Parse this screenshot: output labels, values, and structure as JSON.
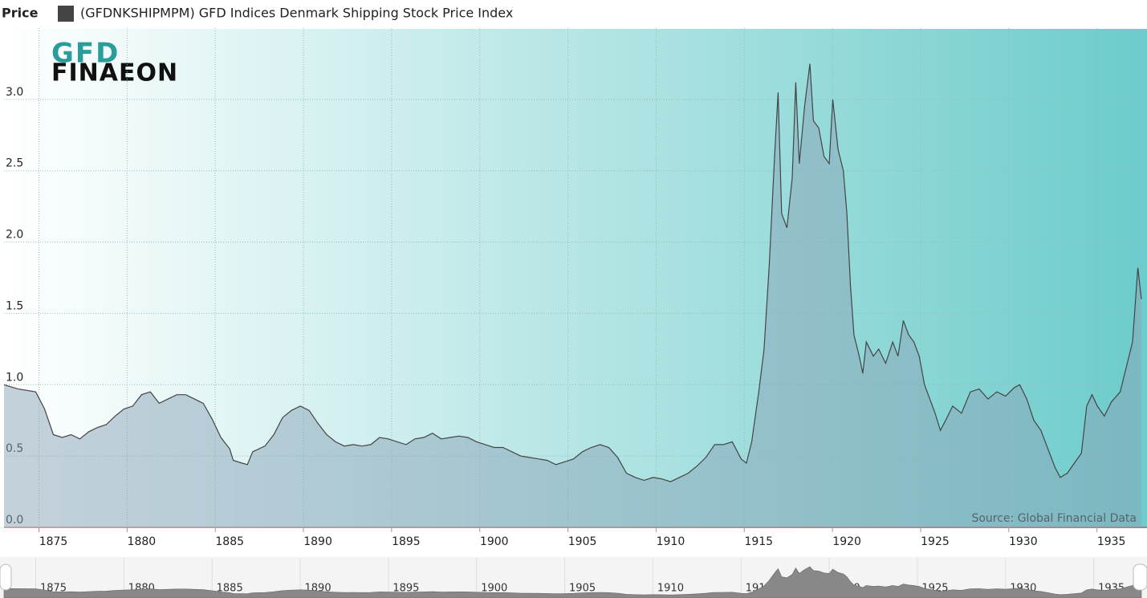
{
  "chart_data": {
    "type": "area",
    "axis_title": "Price",
    "source": "Source: Global Financial Data",
    "logo": {
      "top": "GFD",
      "bottom": "FINAEON"
    },
    "xlim": [
      1872.2,
      1936.7
    ],
    "xticks": [
      1875,
      1880,
      1885,
      1890,
      1895,
      1900,
      1905,
      1910,
      1915,
      1920,
      1925,
      1930,
      1935
    ],
    "ylim": [
      0,
      3.5
    ],
    "yticks": [
      {
        "value": 0,
        "label": "0.0"
      },
      0.5,
      {
        "value": 1,
        "label": "1.0"
      },
      1.5,
      {
        "value": 2,
        "label": "2.0"
      },
      2.5,
      {
        "value": 3,
        "label": "3.0"
      }
    ],
    "grid": true,
    "series": [
      {
        "name": "(GFDNKSHIPMPM) GFD Indices Denmark Shipping Stock Price Index",
        "color": "#444444",
        "x": [
          1872.2,
          1873,
          1874,
          1874.5,
          1875,
          1875.5,
          1876,
          1876.5,
          1877,
          1877.5,
          1878,
          1878.5,
          1879,
          1879.5,
          1880,
          1880.5,
          1881,
          1881.5,
          1882,
          1882.5,
          1883,
          1883.5,
          1884,
          1884.5,
          1885,
          1885.2,
          1885.7,
          1886,
          1886.3,
          1887,
          1887.5,
          1888,
          1888.5,
          1889,
          1889.5,
          1890,
          1890.5,
          1891,
          1891.5,
          1892,
          1892.5,
          1893,
          1893.5,
          1894,
          1894.5,
          1895,
          1895.5,
          1896,
          1896.5,
          1897,
          1897.5,
          1898,
          1898.5,
          1899,
          1899.5,
          1900,
          1900.5,
          1901,
          1901.5,
          1902,
          1902.5,
          1903,
          1903.5,
          1904,
          1904.5,
          1905,
          1905.5,
          1906,
          1906.5,
          1907,
          1907.5,
          1908,
          1908.5,
          1909,
          1909.5,
          1910,
          1910.5,
          1911,
          1911.5,
          1912,
          1912.5,
          1913,
          1913.5,
          1914,
          1914.3,
          1914.6,
          1915,
          1915.3,
          1915.6,
          1915.9,
          1916.1,
          1916.3,
          1916.6,
          1916.9,
          1917.1,
          1917.3,
          1917.6,
          1917.9,
          1918.1,
          1918.4,
          1918.7,
          1919,
          1919.2,
          1919.5,
          1919.8,
          1920,
          1920.2,
          1920.4,
          1920.7,
          1920.9,
          1921.1,
          1921.5,
          1921.8,
          1922.2,
          1922.6,
          1922.9,
          1923.2,
          1923.5,
          1923.8,
          1924.1,
          1924.4,
          1924.7,
          1925,
          1925.3,
          1925.6,
          1926,
          1926.5,
          1927,
          1927.5,
          1928,
          1928.5,
          1929,
          1929.5,
          1929.8,
          1930.2,
          1930.6,
          1931,
          1931.4,
          1931.8,
          1932.1,
          1932.5,
          1932.9,
          1933.3,
          1933.6,
          1933.9,
          1934.2,
          1934.6,
          1935,
          1935.5,
          1935.9,
          1936.2,
          1936.5,
          1936.7
        ],
        "values": [
          1.0,
          0.97,
          0.95,
          0.83,
          0.65,
          0.63,
          0.65,
          0.62,
          0.67,
          0.7,
          0.72,
          0.78,
          0.83,
          0.85,
          0.93,
          0.95,
          0.87,
          0.9,
          0.93,
          0.93,
          0.9,
          0.87,
          0.76,
          0.63,
          0.55,
          0.47,
          0.45,
          0.44,
          0.53,
          0.57,
          0.65,
          0.77,
          0.82,
          0.85,
          0.82,
          0.73,
          0.65,
          0.6,
          0.57,
          0.58,
          0.57,
          0.58,
          0.63,
          0.62,
          0.6,
          0.58,
          0.62,
          0.63,
          0.66,
          0.62,
          0.63,
          0.64,
          0.63,
          0.6,
          0.58,
          0.56,
          0.56,
          0.53,
          0.5,
          0.49,
          0.48,
          0.47,
          0.44,
          0.46,
          0.48,
          0.53,
          0.56,
          0.58,
          0.56,
          0.49,
          0.38,
          0.35,
          0.33,
          0.35,
          0.34,
          0.32,
          0.35,
          0.38,
          0.43,
          0.49,
          0.58,
          0.58,
          0.6,
          0.48,
          0.45,
          0.6,
          0.95,
          1.25,
          1.85,
          2.6,
          3.05,
          2.2,
          2.1,
          2.45,
          3.12,
          2.55,
          2.95,
          3.25,
          2.85,
          2.8,
          2.6,
          2.55,
          3.0,
          2.65,
          2.5,
          2.2,
          1.7,
          1.35,
          1.2,
          1.08,
          1.3,
          1.2,
          1.25,
          1.15,
          1.3,
          1.2,
          1.45,
          1.35,
          1.3,
          1.2,
          1.0,
          0.9,
          0.8,
          0.68,
          0.75,
          0.85,
          0.8,
          0.95,
          0.97,
          0.9,
          0.95,
          0.92,
          0.98,
          1.0,
          0.9,
          0.75,
          0.68,
          0.55,
          0.42,
          0.35,
          0.38,
          0.45,
          0.52,
          0.85,
          0.93,
          0.85,
          0.78,
          0.88,
          0.95,
          1.15,
          1.3,
          1.82,
          1.6
        ]
      }
    ]
  }
}
